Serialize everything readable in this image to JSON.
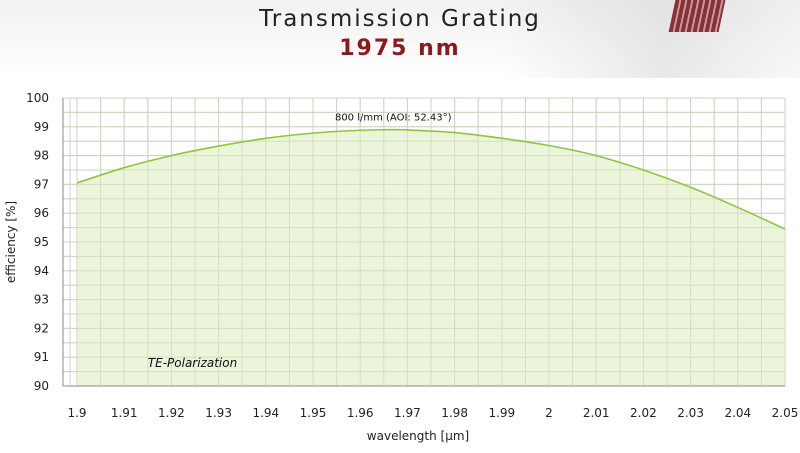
{
  "header": {
    "title": "Transmission Grating",
    "subtitle": "1975 nm"
  },
  "chart_data": {
    "type": "area",
    "title": "Transmission Grating",
    "subtitle": "1975 nm",
    "xlabel": "wavelength [µm]",
    "ylabel": "efficiency [%]",
    "xlim": [
      1.9,
      2.05
    ],
    "ylim": [
      90,
      100
    ],
    "x_ticks": [
      1.9,
      1.91,
      1.92,
      1.93,
      1.94,
      1.95,
      1.96,
      1.97,
      1.98,
      1.99,
      2.0,
      2.01,
      2.02,
      2.03,
      2.04,
      2.05
    ],
    "x_tick_labels": [
      "1.9",
      "1.91",
      "1.92",
      "1.93",
      "1.94",
      "1.95",
      "1.96",
      "1.97",
      "1.98",
      "1.99",
      "2",
      "2.01",
      "2.02",
      "2.03",
      "2.04",
      "2.05"
    ],
    "y_ticks": [
      90,
      91,
      92,
      93,
      94,
      95,
      96,
      97,
      98,
      99,
      100
    ],
    "y_tick_labels": [
      "90",
      "91",
      "92",
      "93",
      "94",
      "95",
      "96",
      "97",
      "98",
      "99",
      "100"
    ],
    "grid": true,
    "series": [
      {
        "name": "800 l/mm (AOI: 52.43°)",
        "color": "#8ec63f",
        "fill": "#e8f3d4",
        "x": [
          1.9,
          1.91,
          1.92,
          1.93,
          1.94,
          1.95,
          1.96,
          1.967,
          1.97,
          1.98,
          1.99,
          2.0,
          2.01,
          2.02,
          2.03,
          2.04,
          2.05
        ],
        "y": [
          97.05,
          97.58,
          98.0,
          98.33,
          98.6,
          98.78,
          98.88,
          98.9,
          98.89,
          98.8,
          98.6,
          98.35,
          98.0,
          97.5,
          96.9,
          96.2,
          95.45
        ]
      }
    ],
    "annotations": [
      {
        "text": "800 l/mm (AOI: 52.43°)",
        "x": 1.967,
        "y": 98.9
      },
      {
        "text": "TE-Polarization",
        "x": 1.915,
        "y": 90.7
      }
    ]
  }
}
